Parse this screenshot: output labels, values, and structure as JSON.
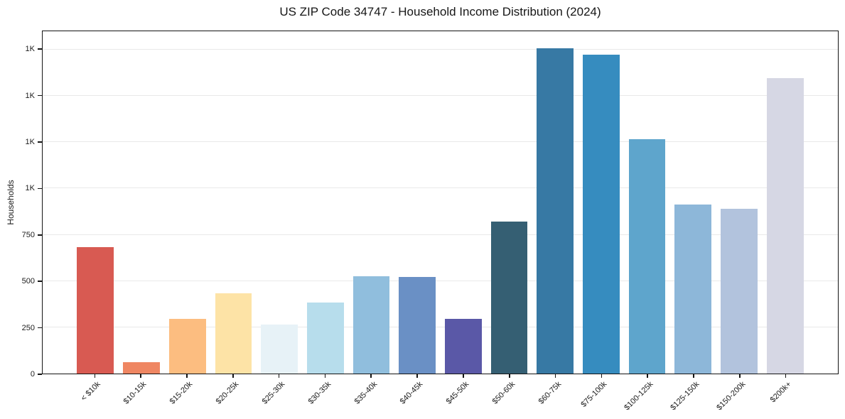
{
  "chart_data": {
    "type": "bar",
    "title": "US ZIP Code 34747 - Household Income Distribution (2024)",
    "xlabel": "",
    "ylabel": "Households",
    "legend": "none",
    "grid": "horizontal",
    "background_color": "#ffffff",
    "axis_color": "#141414",
    "gridline_color": "#e9e9e9",
    "ylim": [
      0,
      1850
    ],
    "yticks": [
      {
        "value": 0,
        "label": "0"
      },
      {
        "value": 250,
        "label": "250"
      },
      {
        "value": 500,
        "label": "500"
      },
      {
        "value": 750,
        "label": "750"
      },
      {
        "value": 1000,
        "label": "1K"
      },
      {
        "value": 1250,
        "label": "1K"
      },
      {
        "value": 1500,
        "label": "1K"
      },
      {
        "value": 1750,
        "label": "1K"
      }
    ],
    "categories": [
      "< $10k",
      "$10-15k",
      "$15-20k",
      "$20-25k",
      "$25-30k",
      "$30-35k",
      "$35-40k",
      "$40-45k",
      "$45-50k",
      "$50-60k",
      "$60-75k",
      "$75-100k",
      "$100-125k",
      "$125-150k",
      "$150-200k",
      "$200k+"
    ],
    "values": [
      682,
      62,
      295,
      432,
      266,
      383,
      526,
      521,
      295,
      823,
      1757,
      1722,
      1265,
      915,
      889,
      1595
    ],
    "bar_colors": [
      "#d85a52",
      "#ef8662",
      "#fcbd80",
      "#fde3a6",
      "#e7f2f7",
      "#b7ddec",
      "#90bedd",
      "#6a90c5",
      "#5a58a7",
      "#355f73",
      "#3779a4",
      "#368cbf",
      "#5ea5cc",
      "#8db7d9",
      "#b2c3dd",
      "#d6d7e4"
    ]
  }
}
